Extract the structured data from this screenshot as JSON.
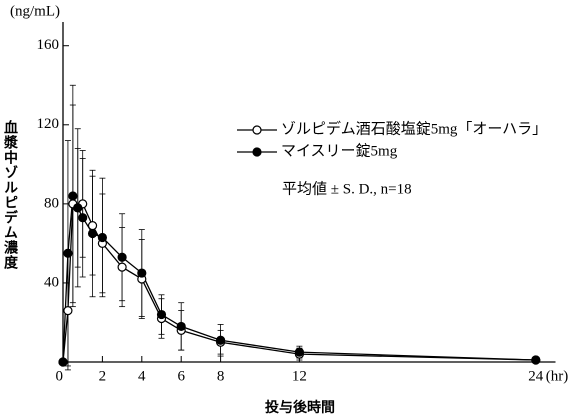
{
  "chart_data": {
    "type": "line",
    "y_unit": "(ng/mL)",
    "y_title": "血漿中ゾルピデム濃度",
    "x_title": "投与後時間",
    "x_unit": "(hr)",
    "annotation": "平均値 ± S. D., n=18",
    "x": [
      0,
      0.25,
      0.5,
      0.75,
      1,
      1.5,
      2,
      3,
      4,
      5,
      6,
      8,
      12,
      24
    ],
    "series": [
      {
        "name": "ゾルピデム酒石酸塩錠5mg「オーハラ」",
        "color": "#000000",
        "marker": "open",
        "values": [
          0,
          26,
          80,
          78,
          80,
          69,
          60,
          48,
          42,
          22,
          16,
          10,
          4,
          1
        ],
        "errors": [
          0,
          30,
          50,
          40,
          27,
          25,
          25,
          20,
          20,
          10,
          10,
          6,
          3,
          1
        ]
      },
      {
        "name": "マイスリー錠5mg",
        "color": "#000000",
        "marker": "filled",
        "values": [
          0,
          55,
          84,
          78,
          73,
          65,
          63,
          53,
          45,
          24,
          18,
          11,
          5,
          1
        ],
        "errors": [
          0,
          57,
          56,
          30,
          30,
          32,
          30,
          22,
          22,
          10,
          12,
          8,
          3,
          1
        ]
      }
    ],
    "xlim": [
      0,
      25
    ],
    "ylim": [
      0,
      172
    ],
    "xticks": [
      0,
      2,
      4,
      6,
      8,
      12,
      24
    ],
    "yticks": [
      40,
      80,
      120,
      160
    ],
    "grid": false,
    "legend": "top-right"
  }
}
